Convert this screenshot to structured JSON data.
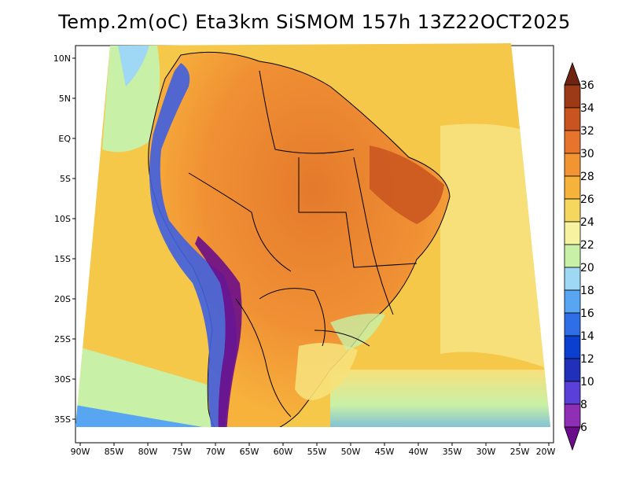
{
  "title": "Temp.2m(oC) Eta3km SiSMOM 157h 13Z22OCT2025",
  "axes": {
    "lat_labels": [
      "10N",
      "5N",
      "EQ",
      "5S",
      "10S",
      "15S",
      "20S",
      "25S",
      "30S",
      "35S"
    ],
    "lon_labels": [
      "90W",
      "85W",
      "80W",
      "75W",
      "70W",
      "65W",
      "60W",
      "55W",
      "50W",
      "45W",
      "40W",
      "35W",
      "30W",
      "25W",
      "20W"
    ]
  },
  "colorbar": {
    "levels": [
      "6",
      "8",
      "10",
      "12",
      "14",
      "16",
      "18",
      "20",
      "22",
      "24",
      "26",
      "28",
      "30",
      "32",
      "34",
      "36"
    ],
    "colors": [
      "#6a0d8a",
      "#8f2fb5",
      "#5a3fd8",
      "#2030b8",
      "#0a3fd0",
      "#2e6fe8",
      "#58a6f2",
      "#9fd8f5",
      "#c8f0a6",
      "#f7f2a0",
      "#f5d760",
      "#f7b23c",
      "#f29432",
      "#e7742c",
      "#c9541f",
      "#9c3a18",
      "#6e2410"
    ]
  },
  "colors": {
    "ocean_warm": "#f5c84a",
    "ocean_mid": "#f7e07a",
    "ocean_cool": "#c8f0a6",
    "ocean_cold": "#9fd8f5",
    "land_hot": "#f09034",
    "land_hotter": "#e47a2c",
    "andes_cold": "#7a2fb0",
    "andes_mid": "#3f5fe0"
  }
}
